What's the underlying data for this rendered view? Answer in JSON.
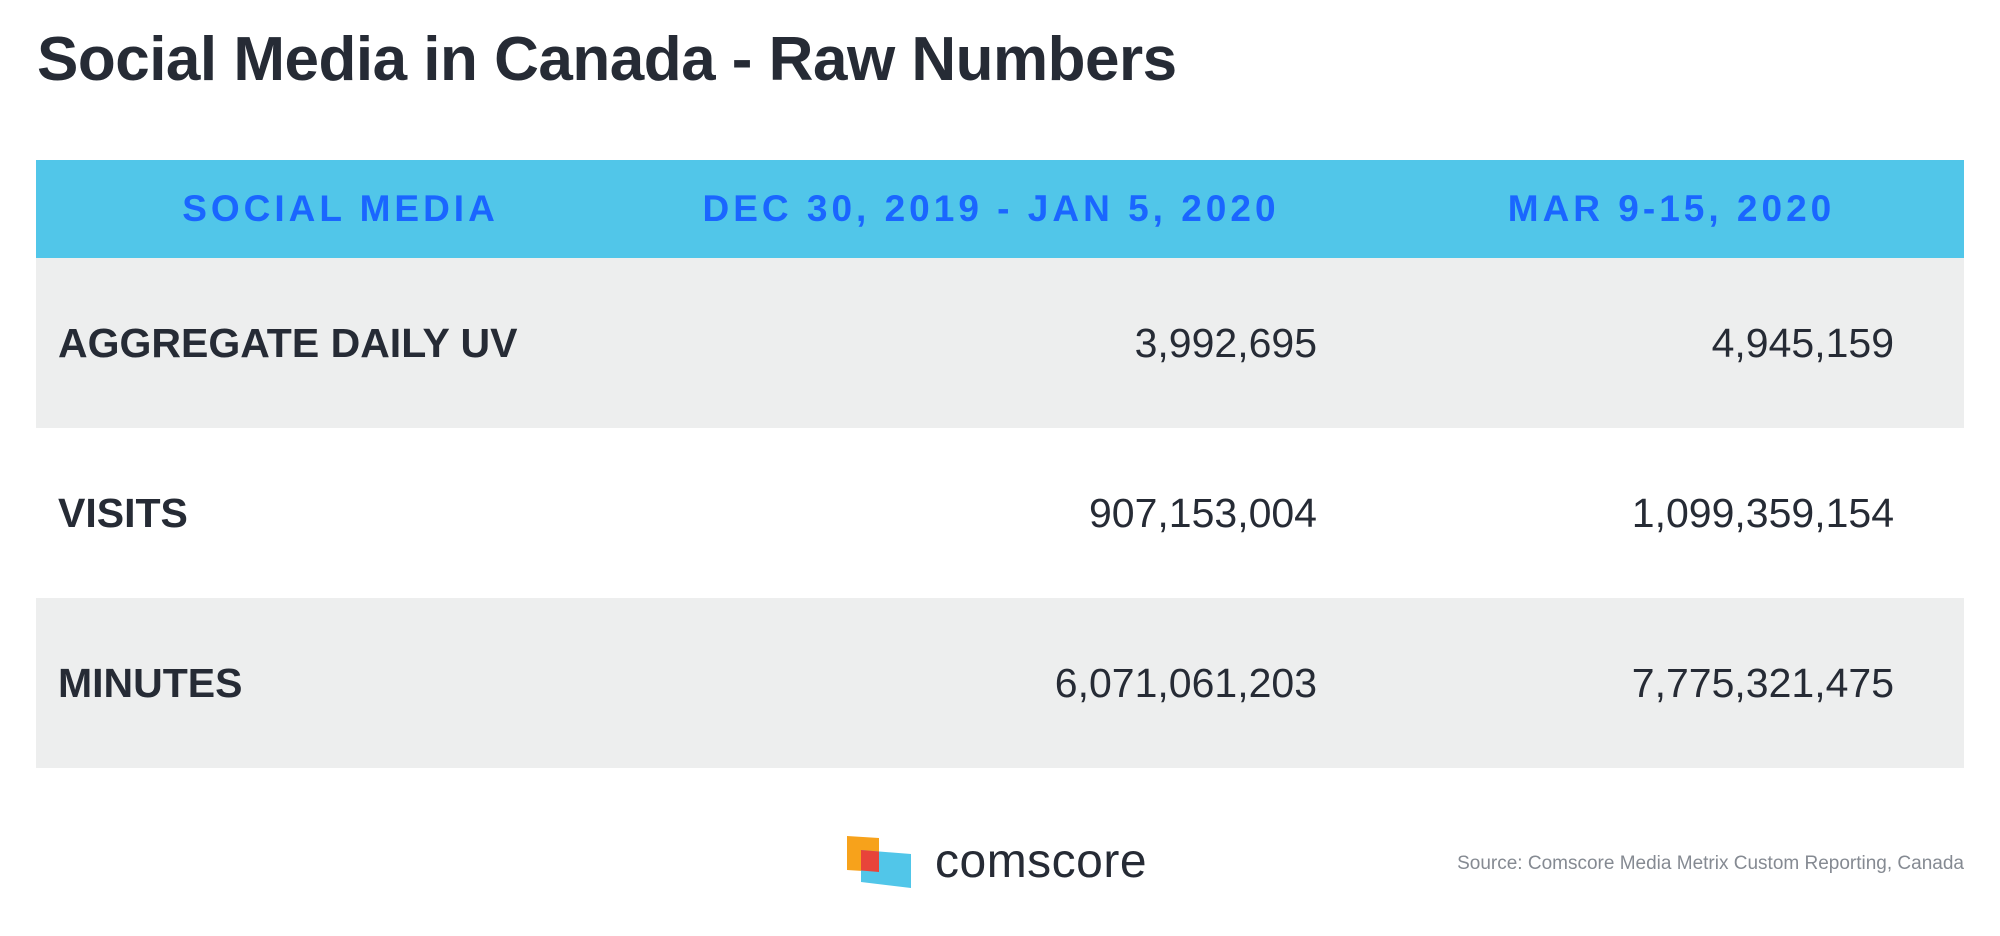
{
  "title": "Social Media in Canada - Raw Numbers",
  "table": {
    "headers": [
      "SOCIAL MEDIA",
      "DEC 30, 2019 - JAN 5, 2020",
      "MAR 9-15, 2020"
    ],
    "rows": [
      {
        "metric": "AGGREGATE DAILY UV",
        "period1": "3,992,695",
        "period2": "4,945,159"
      },
      {
        "metric": "VISITS",
        "period1": "907,153,004",
        "period2": "1,099,359,154"
      },
      {
        "metric": "MINUTES",
        "period1": "6,071,061,203",
        "period2": "7,775,321,475"
      }
    ]
  },
  "chart_data": {
    "type": "table",
    "title": "Social Media in Canada - Raw Numbers",
    "columns": [
      "SOCIAL MEDIA",
      "DEC 30, 2019 - JAN 5, 2020",
      "MAR 9-15, 2020"
    ],
    "rows": [
      [
        "AGGREGATE DAILY UV",
        3992695,
        4945159
      ],
      [
        "VISITS",
        907153004,
        1099359154
      ],
      [
        "MINUTES",
        6071061203,
        7775321475
      ]
    ]
  },
  "footer": {
    "logo_icon": "comscore-logo-mark",
    "logo_text": "comscore",
    "source": "Source: Comscore Media Metrix Custom Reporting, Canada"
  },
  "colors": {
    "header_bg": "#51c6e9",
    "header_text": "#1a66ff",
    "row_shade": "#edeeee",
    "text": "#262b35",
    "logo_orange": "#f7a21b",
    "logo_red": "#e8443a",
    "logo_blue": "#51c6e9"
  }
}
